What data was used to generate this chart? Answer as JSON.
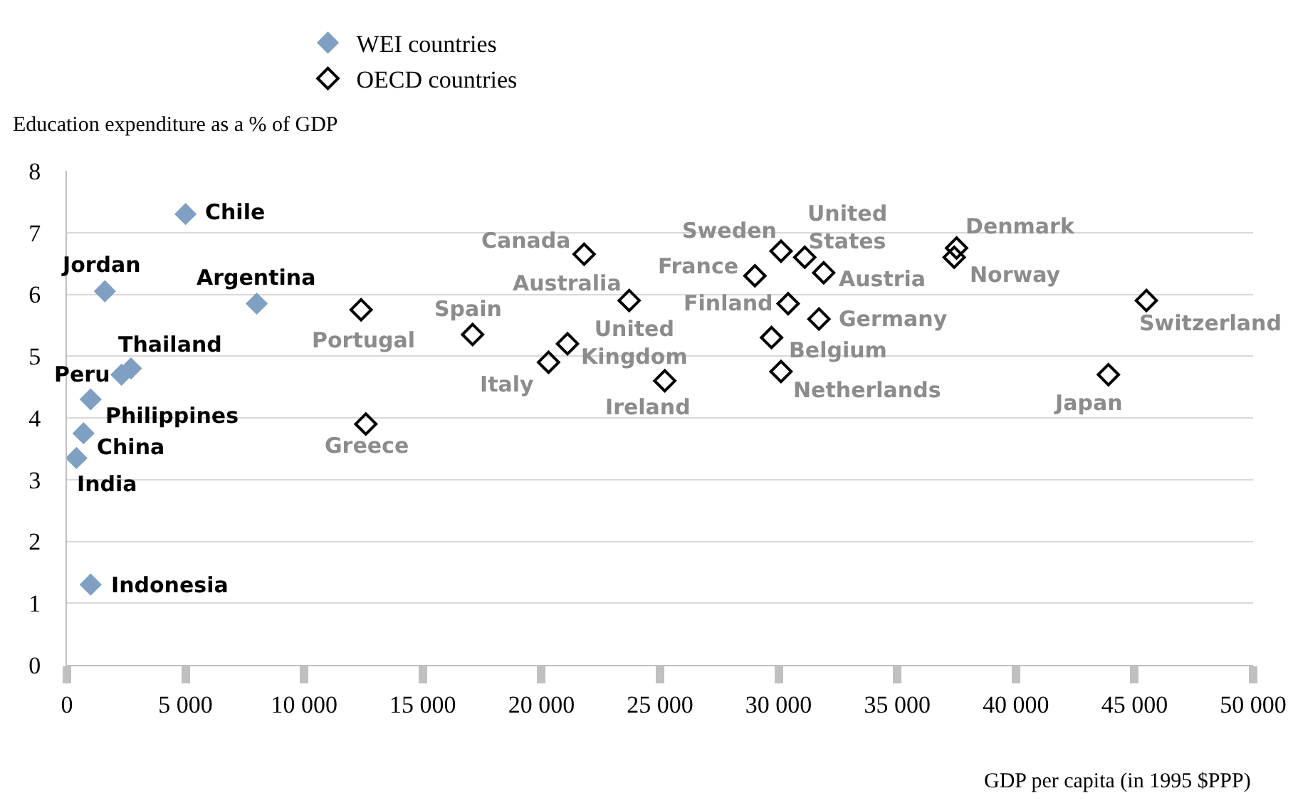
{
  "chart_data": {
    "type": "scatter",
    "xlabel": "GDP per capita (in 1995 $PPP)",
    "ylabel": "Education expenditure as a % of GDP",
    "xlim": [
      0,
      50000
    ],
    "xticks": [
      0,
      {
        "value": 5000,
        "label": "5 000"
      },
      {
        "value": 10000,
        "label": "10 000"
      },
      {
        "value": 15000,
        "label": "15 000"
      },
      {
        "value": 20000,
        "label": "20 000"
      },
      {
        "value": 25000,
        "label": "25 000"
      },
      {
        "value": 30000,
        "label": "30 000"
      },
      {
        "value": 35000,
        "label": "35 000"
      },
      {
        "value": 40000,
        "label": "40 000"
      },
      {
        "value": 45000,
        "label": "45 000"
      },
      {
        "value": 50000,
        "label": "50 000"
      }
    ],
    "ylim": [
      0,
      8
    ],
    "yticks": [
      0,
      1,
      2,
      3,
      4,
      5,
      6,
      7,
      8
    ],
    "grid": "y",
    "legend": "top",
    "marker": "diamond",
    "series": [
      {
        "name": "WEI countries",
        "color": "#7f9fc3",
        "x": [
          5000,
          1600,
          8000,
          2700,
          2300,
          1000,
          700,
          400,
          1000
        ],
        "values": [
          7.3,
          6.05,
          5.85,
          4.8,
          4.7,
          4.3,
          3.75,
          3.35,
          1.3
        ]
      },
      {
        "name": "OECD countries",
        "color": "#000000",
        "x": [
          12400,
          12600,
          17100,
          20300,
          21100,
          21800,
          23700,
          25200,
          29000,
          29700,
          30100,
          30100,
          30400,
          31100,
          31900,
          31700,
          37500,
          37400,
          43900,
          45500
        ],
        "values": [
          5.75,
          3.9,
          5.35,
          4.9,
          5.2,
          6.65,
          5.9,
          4.6,
          6.3,
          5.3,
          6.7,
          4.75,
          5.85,
          6.6,
          6.35,
          5.6,
          6.75,
          6.6,
          4.7,
          5.9
        ]
      }
    ],
    "annotations": [
      {
        "text": "Chile",
        "x": 5000,
        "y": 7.3
      },
      {
        "text": "Jordan",
        "x": 1600,
        "y": 6.05
      },
      {
        "text": "Argentina",
        "x": 8000,
        "y": 5.85
      },
      {
        "text": "Thailand",
        "x": 2700,
        "y": 4.8
      },
      {
        "text": "Peru",
        "x": 2300,
        "y": 4.7
      },
      {
        "text": "Philippines",
        "x": 1000,
        "y": 4.3
      },
      {
        "text": "China",
        "x": 700,
        "y": 3.75
      },
      {
        "text": "India",
        "x": 400,
        "y": 3.35
      },
      {
        "text": "Indonesia",
        "x": 1000,
        "y": 1.3
      },
      {
        "text": "Portugal",
        "x": 12400,
        "y": 5.75
      },
      {
        "text": "Greece",
        "x": 12600,
        "y": 3.9
      },
      {
        "text": "Spain",
        "x": 17100,
        "y": 5.35
      },
      {
        "text": "Italy",
        "x": 20300,
        "y": 4.9
      },
      {
        "text": "United Kingdom",
        "x": 21100,
        "y": 5.2
      },
      {
        "text": "Canada",
        "x": 21800,
        "y": 6.65
      },
      {
        "text": "Australia",
        "x": 23700,
        "y": 5.9
      },
      {
        "text": "Ireland",
        "x": 25200,
        "y": 4.6
      },
      {
        "text": "France",
        "x": 29000,
        "y": 6.3
      },
      {
        "text": "Belgium",
        "x": 29700,
        "y": 5.3
      },
      {
        "text": "Sweden",
        "x": 30100,
        "y": 6.7
      },
      {
        "text": "Netherlands",
        "x": 30100,
        "y": 4.75
      },
      {
        "text": "Finland",
        "x": 30400,
        "y": 5.85
      },
      {
        "text": "United States",
        "x": 31100,
        "y": 6.6
      },
      {
        "text": "Austria",
        "x": 31900,
        "y": 6.35
      },
      {
        "text": "Germany",
        "x": 31700,
        "y": 5.6
      },
      {
        "text": "Denmark",
        "x": 37500,
        "y": 6.75
      },
      {
        "text": "Norway",
        "x": 37400,
        "y": 6.6
      },
      {
        "text": "Japan",
        "x": 43900,
        "y": 4.7
      },
      {
        "text": "Switzerland",
        "x": 45500,
        "y": 5.9
      }
    ]
  }
}
